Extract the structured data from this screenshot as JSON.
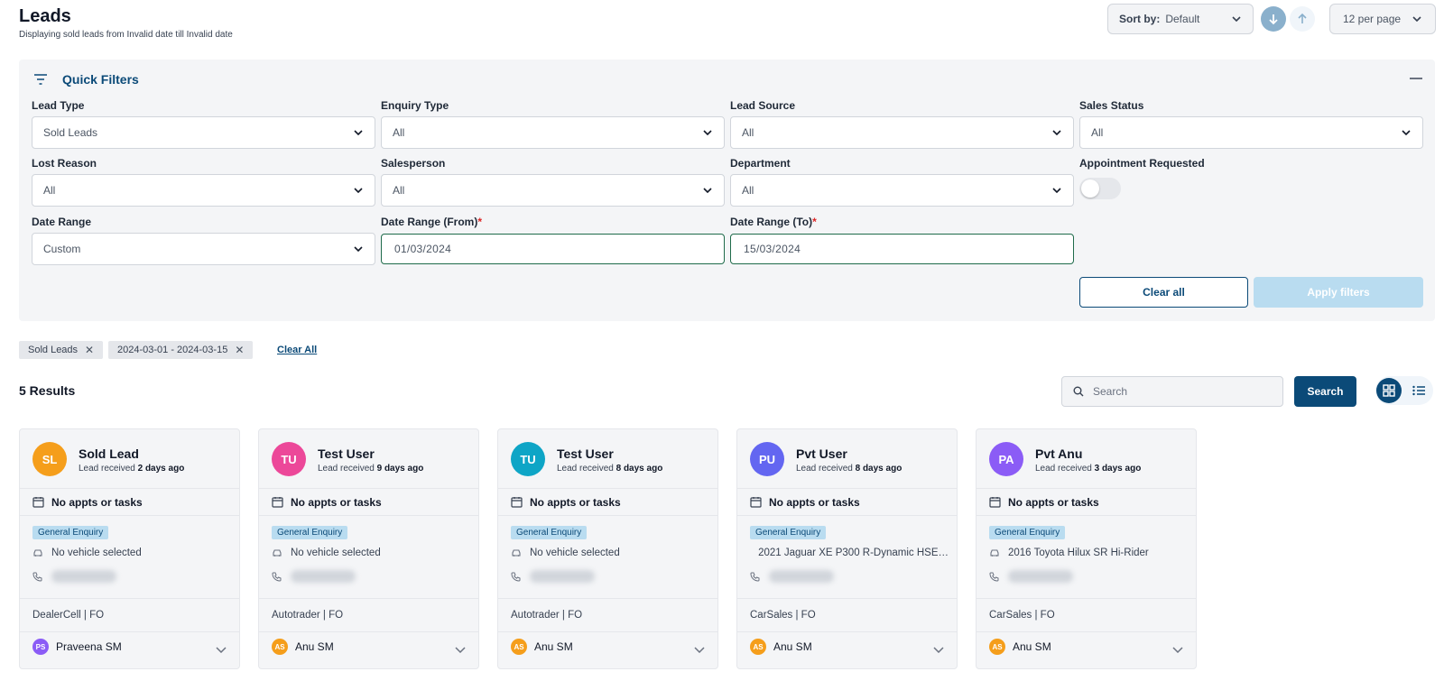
{
  "header": {
    "title": "Leads",
    "subtitle": "Displaying sold leads from Invalid date till Invalid date",
    "sort_label": "Sort by:",
    "sort_value": "Default",
    "per_page": "12 per page"
  },
  "quick_filters": {
    "title": "Quick Filters",
    "lead_type": {
      "label": "Lead Type",
      "value": "Sold Leads"
    },
    "enquiry_type": {
      "label": "Enquiry Type",
      "value": "All"
    },
    "lead_source": {
      "label": "Lead Source",
      "value": "All"
    },
    "sales_status": {
      "label": "Sales Status",
      "value": "All"
    },
    "lost_reason": {
      "label": "Lost Reason",
      "value": "All"
    },
    "salesperson": {
      "label": "Salesperson",
      "value": "All"
    },
    "department": {
      "label": "Department",
      "value": "All"
    },
    "appointment_requested": {
      "label": "Appointment Requested",
      "on": false
    },
    "date_range": {
      "label": "Date Range",
      "value": "Custom"
    },
    "date_from": {
      "label": "Date Range (From)",
      "required": "*",
      "value": "01/03/2024"
    },
    "date_to": {
      "label": "Date Range (To)",
      "required": "*",
      "value": "15/03/2024"
    },
    "clear_all": "Clear all",
    "apply": "Apply filters"
  },
  "active_chips": [
    {
      "label": "Sold Leads",
      "remove": "✕"
    },
    {
      "label": "2024-03-01 - 2024-03-15",
      "remove": "✕"
    }
  ],
  "clear_all_link": "Clear All",
  "results": {
    "count_text": "5 Results",
    "search_placeholder": "Search",
    "search_button": "Search"
  },
  "colors": {
    "primary": "#0b4a78",
    "apply_disabled": "#b9dcf0",
    "badge_bg": "#b9dcf0"
  },
  "cards": [
    {
      "initials": "SL",
      "avatar_color": "#f59e1b",
      "name": "Sold Lead",
      "received_prefix": "Lead received",
      "received_when": "2 days ago",
      "appts": "No appts or tasks",
      "badge": "General Enquiry",
      "vehicle": "No vehicle selected",
      "source": "DealerCell | FO",
      "owner_initials": "PS",
      "owner_color": "#8b5cf6",
      "owner": "Praveena SM"
    },
    {
      "initials": "TU",
      "avatar_color": "#ec4899",
      "name": "Test User",
      "received_prefix": "Lead received",
      "received_when": "9 days ago",
      "appts": "No appts or tasks",
      "badge": "General Enquiry",
      "vehicle": "No vehicle selected",
      "source": "Autotrader | FO",
      "owner_initials": "AS",
      "owner_color": "#f59e1b",
      "owner": "Anu SM"
    },
    {
      "initials": "TU",
      "avatar_color": "#0ea5c6",
      "name": "Test User",
      "received_prefix": "Lead received",
      "received_when": "8 days ago",
      "appts": "No appts or tasks",
      "badge": "General Enquiry",
      "vehicle": "No vehicle selected",
      "source": "Autotrader | FO",
      "owner_initials": "AS",
      "owner_color": "#f59e1b",
      "owner": "Anu SM"
    },
    {
      "initials": "PU",
      "avatar_color": "#6366f1",
      "name": "Pvt User",
      "received_prefix": "Lead received",
      "received_when": "8 days ago",
      "appts": "No appts or tasks",
      "badge": "General Enquiry",
      "vehicle": "2021 Jaguar XE P300 R-Dynamic HSE…",
      "source": "CarSales | FO",
      "owner_initials": "AS",
      "owner_color": "#f59e1b",
      "owner": "Anu SM"
    },
    {
      "initials": "PA",
      "avatar_color": "#8b5cf6",
      "name": "Pvt Anu",
      "received_prefix": "Lead received",
      "received_when": "3 days ago",
      "appts": "No appts or tasks",
      "badge": "General Enquiry",
      "vehicle": "2016 Toyota Hilux SR Hi-Rider",
      "source": "CarSales | FO",
      "owner_initials": "AS",
      "owner_color": "#f59e1b",
      "owner": "Anu SM"
    }
  ]
}
